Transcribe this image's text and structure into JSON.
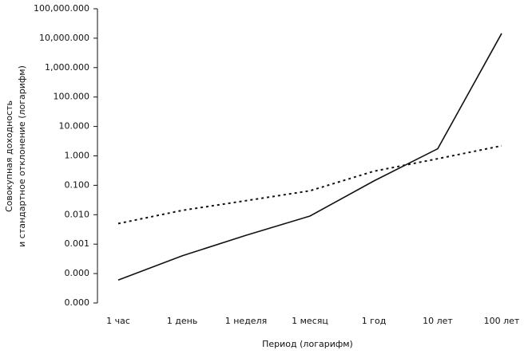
{
  "chart_data": {
    "type": "line",
    "x_label": "Период (логарифм)",
    "y_label": [
      "Совокупная доходность",
      "и стандартное отклонение (логарифм)"
    ],
    "categories": [
      "1 час",
      "1 день",
      "1 неделя",
      "1 месяц",
      "1 год",
      "10 лет",
      "100 лет"
    ],
    "series": [
      {
        "color": "#111111",
        "style": "solid",
        "values": [
          6e-05,
          0.0004,
          0.002,
          0.009,
          0.14,
          1.75,
          14500
        ]
      },
      {
        "color": "#111111",
        "style": "dotted",
        "values": [
          0.005,
          0.014,
          0.03,
          0.065,
          0.3,
          0.8,
          2.2
        ]
      }
    ],
    "log_scale_y": true,
    "ylim": [
      1e-05,
      100000
    ],
    "yticks": [
      {
        "value": 1e-05,
        "label": "0.000"
      },
      {
        "value": 0.0001,
        "label": "0.000"
      },
      {
        "value": 0.001,
        "label": "0.001"
      },
      {
        "value": 0.01,
        "label": "0.010"
      },
      {
        "value": 0.1,
        "label": "0.100"
      },
      {
        "value": 1,
        "label": "1.000"
      },
      {
        "value": 10,
        "label": "10.000"
      },
      {
        "value": 100,
        "label": "100.000"
      },
      {
        "value": 1000,
        "label": "1,000.000"
      },
      {
        "value": 10000,
        "label": "10,000.000"
      },
      {
        "value": 100000,
        "label": "100,000.000"
      }
    ]
  }
}
